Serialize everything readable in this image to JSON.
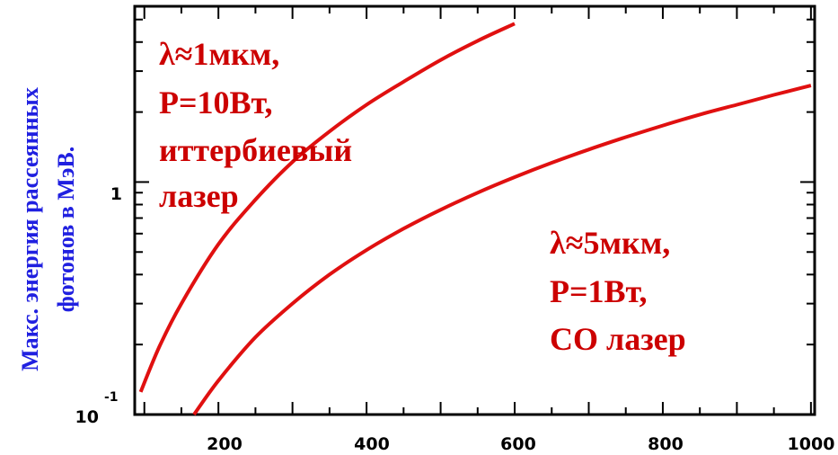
{
  "chart_data": {
    "type": "line",
    "title": "",
    "xlabel": "",
    "ylabel_lines": [
      "Макс. энергия рассеянных",
      "фотонов в МэВ."
    ],
    "xlim": [
      87,
      1005
    ],
    "ylim": [
      0.1,
      5.7
    ],
    "yscale": "log",
    "grid": false,
    "x_ticks": [
      "200",
      "400",
      "600",
      "800",
      "1000"
    ],
    "y_ticks": [
      {
        "base": "1",
        "exp": ""
      },
      {
        "base": "10",
        "exp": "-1"
      }
    ],
    "series": [
      {
        "color": "#e01010",
        "x": [
          95,
          120,
          150,
          200,
          250,
          300,
          350,
          400,
          450,
          500,
          550,
          600
        ],
        "y": [
          0.125,
          0.195,
          0.3,
          0.54,
          0.84,
          1.22,
          1.65,
          2.15,
          2.7,
          3.35,
          4.05,
          4.8
        ]
      },
      {
        "color": "#e01010",
        "x": [
          167,
          200,
          250,
          300,
          350,
          400,
          450,
          500,
          550,
          600,
          650,
          700,
          750,
          800,
          850,
          900,
          950,
          1000
        ],
        "y": [
          0.1,
          0.14,
          0.215,
          0.3,
          0.4,
          0.51,
          0.63,
          0.76,
          0.9,
          1.05,
          1.21,
          1.38,
          1.56,
          1.75,
          1.95,
          2.15,
          2.37,
          2.6
        ]
      }
    ],
    "annotations": [
      {
        "lines": [
          "λ≈1мкм,",
          "P=10Вт,",
          "иттербиевый",
          "лазер"
        ]
      },
      {
        "lines": [
          "λ≈5мкм,",
          "P=1Вт,",
          "CO лазер"
        ]
      }
    ]
  }
}
